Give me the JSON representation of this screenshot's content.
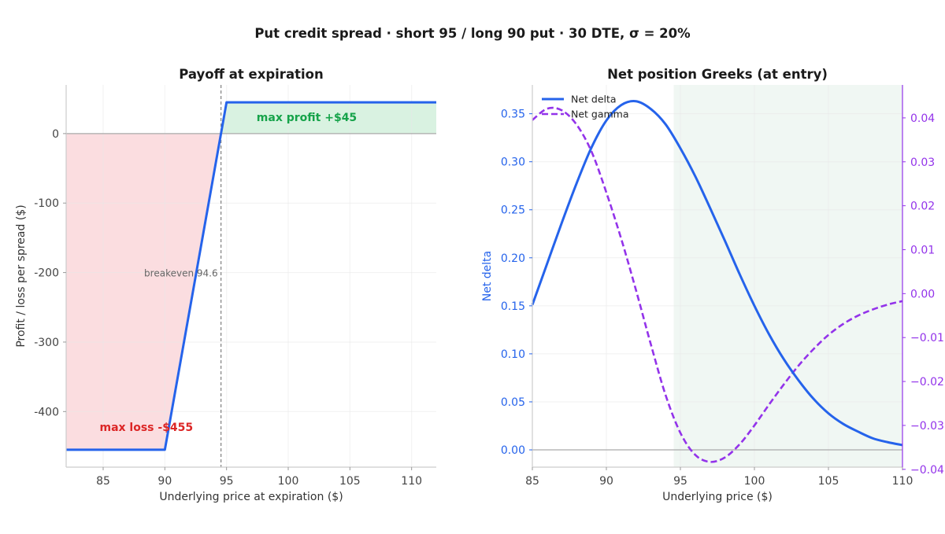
{
  "figure": {
    "suptitle": "Put credit spread  ·  short 95 / long 90 put  ·  30 DTE, σ = 20%"
  },
  "colors": {
    "payoff_line": "#2563eb",
    "profit_fill": "#d9f2e1",
    "loss_fill": "#fbdde0",
    "profit_text": "#16a34a",
    "loss_text": "#dc2626",
    "delta": "#2563eb",
    "gamma": "#9333ea",
    "greeks_profit_zone": "#f0f7f3",
    "zero_line": "#aaaaaa",
    "breakeven_line": "#888888"
  },
  "chart_data": [
    {
      "type": "line",
      "title": "Payoff at expiration",
      "xlabel": "Underlying price at expiration ($)",
      "ylabel": "Profit / loss per spread ($)",
      "xlim": [
        82,
        112
      ],
      "ylim": [
        -480,
        70
      ],
      "xticks": [
        85,
        90,
        95,
        100,
        105,
        110
      ],
      "yticks": [
        -400,
        -300,
        -200,
        -100,
        0
      ],
      "grid": true,
      "series": [
        {
          "x": [
            82,
            90,
            95,
            112
          ],
          "y": [
            -455,
            -455,
            45,
            45
          ]
        }
      ],
      "breakeven": 94.55,
      "annotations": {
        "breakeven": "breakeven 94.6",
        "max_profit": "max profit  +$45",
        "max_loss": "max loss  -$455"
      },
      "max_profit": 45,
      "max_loss": -455
    },
    {
      "type": "line",
      "title": "Net position Greeks (at entry)",
      "xlabel": "Underlying price ($)",
      "ylabel": "Net delta",
      "xlim": [
        85,
        110
      ],
      "ylim": [
        -0.018,
        0.38
      ],
      "y2lim": [
        -0.0395,
        0.0475
      ],
      "xticks": [
        85,
        90,
        95,
        100,
        105,
        110
      ],
      "yticks": [
        0.0,
        0.05,
        0.1,
        0.15,
        0.2,
        0.25,
        0.3,
        0.35
      ],
      "ytick_labels": [
        "0.00",
        "0.05",
        "0.10",
        "0.15",
        "0.20",
        "0.25",
        "0.30",
        "0.35"
      ],
      "y2ticks": [
        -0.04,
        -0.03,
        -0.02,
        -0.01,
        0.0,
        0.01,
        0.02,
        0.03,
        0.04
      ],
      "y2tick_labels": [
        "−0.04",
        "−0.03",
        "−0.02",
        "−0.01",
        "0.00",
        "0.01",
        "0.02",
        "0.03",
        "0.04"
      ],
      "profit_zone": [
        94.55,
        110
      ],
      "legend": "top-left",
      "series": [
        {
          "name": "Net delta",
          "axis": "left",
          "x": [
            85,
            86,
            87,
            88,
            89,
            90,
            91,
            92,
            93,
            94,
            95,
            96,
            97,
            98,
            99,
            100,
            101,
            102,
            103,
            104,
            105,
            106,
            107,
            108,
            109,
            110
          ],
          "y": [
            0.151,
            0.194,
            0.237,
            0.278,
            0.315,
            0.343,
            0.359,
            0.363,
            0.355,
            0.339,
            0.314,
            0.285,
            0.252,
            0.218,
            0.183,
            0.15,
            0.12,
            0.094,
            0.072,
            0.053,
            0.038,
            0.027,
            0.019,
            0.012,
            0.008,
            0.005
          ]
        },
        {
          "name": "Net gamma",
          "axis": "right",
          "x": [
            85,
            86,
            87,
            88,
            89,
            90,
            91,
            92,
            93,
            94,
            95,
            96,
            97,
            98,
            99,
            100,
            101,
            102,
            103,
            104,
            105,
            106,
            107,
            108,
            109,
            110
          ],
          "y": [
            0.0395,
            0.0421,
            0.0417,
            0.0384,
            0.0323,
            0.023,
            0.0125,
            0.0008,
            -0.0115,
            -0.0231,
            -0.0317,
            -0.0367,
            -0.0383,
            -0.0373,
            -0.0343,
            -0.03,
            -0.0252,
            -0.0206,
            -0.0163,
            -0.0126,
            -0.0094,
            -0.0069,
            -0.005,
            -0.0036,
            -0.0025,
            -0.0017
          ]
        }
      ]
    }
  ]
}
